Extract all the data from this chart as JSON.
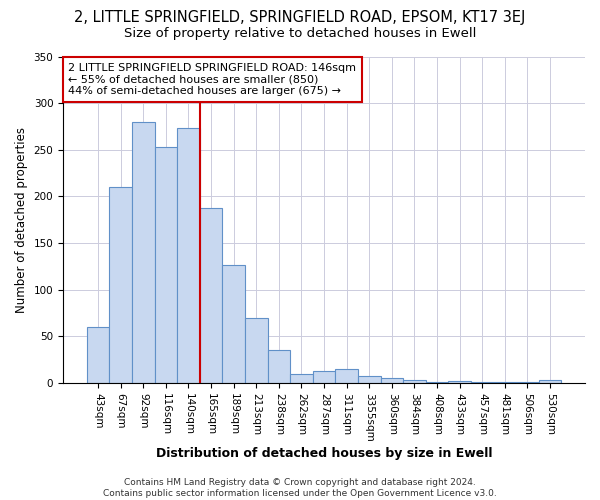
{
  "title": "2, LITTLE SPRINGFIELD, SPRINGFIELD ROAD, EPSOM, KT17 3EJ",
  "subtitle": "Size of property relative to detached houses in Ewell",
  "xlabel": "Distribution of detached houses by size in Ewell",
  "ylabel": "Number of detached properties",
  "bar_labels": [
    "43sqm",
    "67sqm",
    "92sqm",
    "116sqm",
    "140sqm",
    "165sqm",
    "189sqm",
    "213sqm",
    "238sqm",
    "262sqm",
    "287sqm",
    "311sqm",
    "3355sqm",
    "360sqm",
    "384sqm",
    "408sqm",
    "433sqm",
    "457sqm",
    "481sqm",
    "506sqm",
    "530sqm"
  ],
  "bar_heights": [
    60,
    210,
    280,
    253,
    273,
    188,
    127,
    70,
    35,
    10,
    13,
    15,
    8,
    5,
    3,
    1,
    2,
    1,
    1,
    1,
    3
  ],
  "bar_color": "#c8d8f0",
  "bar_edgecolor": "#6090c8",
  "bar_linewidth": 0.8,
  "vline_index": 4,
  "vline_color": "#cc0000",
  "ylim": [
    0,
    350
  ],
  "yticks": [
    0,
    50,
    100,
    150,
    200,
    250,
    300,
    350
  ],
  "annotation_title": "2 LITTLE SPRINGFIELD SPRINGFIELD ROAD: 146sqm",
  "annotation_line1": "← 55% of detached houses are smaller (850)",
  "annotation_line2": "44% of semi-detached houses are larger (675) →",
  "annotation_box_facecolor": "#ffffff",
  "annotation_box_edgecolor": "#cc0000",
  "footer_line1": "Contains HM Land Registry data © Crown copyright and database right 2024.",
  "footer_line2": "Contains public sector information licensed under the Open Government Licence v3.0.",
  "background_color": "#ffffff",
  "plot_background_color": "#ffffff",
  "grid_color": "#ccccdd",
  "title_fontsize": 10.5,
  "subtitle_fontsize": 9.5,
  "xlabel_fontsize": 9,
  "ylabel_fontsize": 8.5,
  "tick_fontsize": 7.5,
  "annotation_fontsize": 8,
  "footer_fontsize": 6.5
}
